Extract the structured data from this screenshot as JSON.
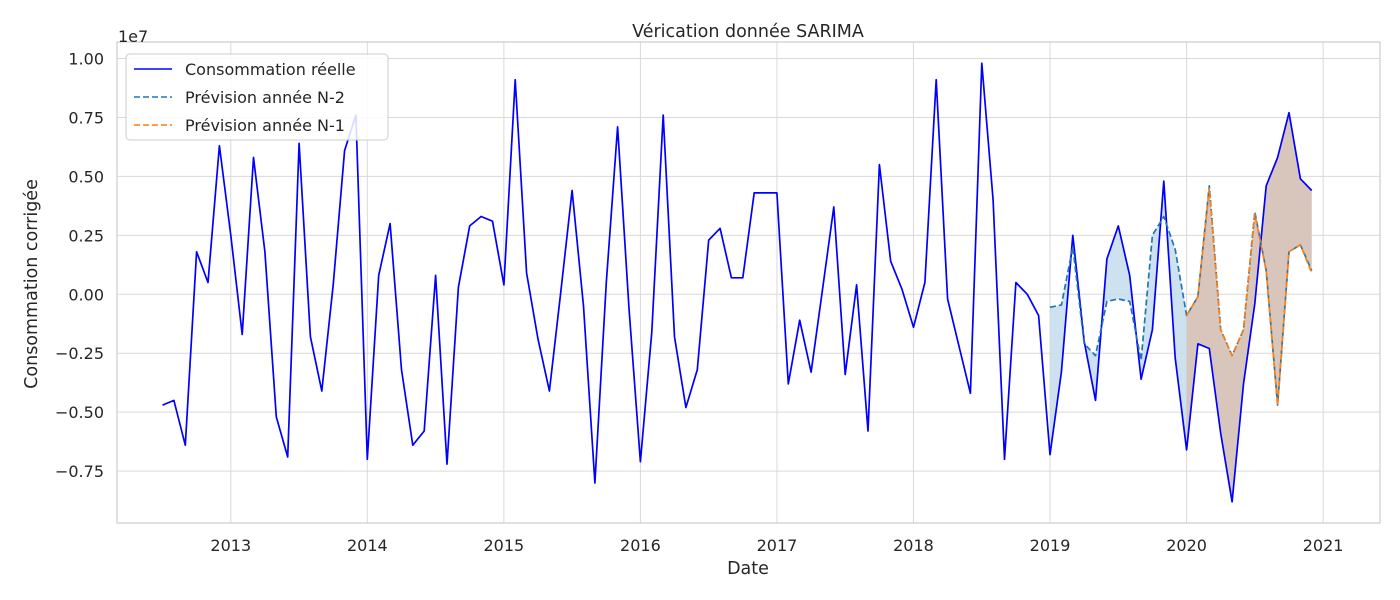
{
  "chart_data": {
    "type": "line",
    "title": "Vérication donnée SARIMA",
    "xlabel": "Date",
    "ylabel": "Consommation corrigée",
    "offset_text": "1e7",
    "x_ticks": [
      "2013",
      "2014",
      "2015",
      "2016",
      "2017",
      "2018",
      "2019",
      "2020",
      "2021"
    ],
    "y_ticks": [
      "−0.75",
      "−0.50",
      "−0.25",
      "0.00",
      "0.25",
      "0.50",
      "0.75",
      "1.00"
    ],
    "y_tick_values": [
      -0.75,
      -0.5,
      -0.25,
      0.0,
      0.25,
      0.5,
      0.75,
      1.0
    ],
    "xlim": [
      "2012-03",
      "2021-06"
    ],
    "ylim": [
      -0.97,
      1.07
    ],
    "grid": true,
    "legend_position": "top-left",
    "colors": {
      "actual": "#0000ff",
      "forecast_n2": "#1f77b4",
      "forecast_n1": "#ff7f0e",
      "fill_n2": "#c6dcec",
      "fill_n1": "#d9c1b3",
      "grid": "#d9d9d9"
    },
    "series": [
      {
        "name": "Consommation réelle",
        "style": "solid",
        "start": "2012-07",
        "values": [
          -0.47,
          -0.45,
          -0.64,
          0.18,
          0.05,
          0.63,
          0.25,
          -0.17,
          0.58,
          0.18,
          -0.52,
          -0.69,
          0.64,
          -0.18,
          -0.41,
          0.04,
          0.61,
          0.76,
          -0.7,
          0.08,
          0.3,
          -0.32,
          -0.64,
          -0.58,
          0.08,
          -0.72,
          0.03,
          0.29,
          0.33,
          0.31,
          0.04,
          0.91,
          0.09,
          -0.19,
          -0.41,
          0.01,
          0.44,
          -0.05,
          -0.8,
          0.05,
          0.71,
          -0.06,
          -0.71,
          -0.16,
          0.76,
          -0.18,
          -0.48,
          -0.32,
          0.23,
          0.28,
          0.07,
          0.07,
          0.43,
          0.43,
          0.43,
          -0.38,
          -0.11,
          -0.33,
          0.02,
          0.37,
          -0.34,
          0.04,
          -0.58,
          0.55,
          0.14,
          0.02,
          -0.14,
          0.05,
          0.91,
          -0.02,
          -0.22,
          -0.42,
          0.98,
          0.4,
          -0.7,
          0.05,
          0.0,
          -0.09,
          -0.68,
          -0.33,
          0.25,
          -0.2,
          -0.45,
          0.15,
          0.29,
          0.08,
          -0.36,
          -0.15,
          0.48,
          -0.27,
          -0.66,
          -0.21,
          -0.23,
          -0.59,
          -0.88,
          -0.38,
          -0.04,
          0.46,
          0.58,
          0.77,
          0.49,
          0.44
        ]
      },
      {
        "name": "Prévision année N-2",
        "style": "dashed",
        "start": "2019-01",
        "values": [
          -0.055,
          -0.045,
          0.2,
          -0.21,
          -0.26,
          -0.03,
          -0.02,
          -0.03,
          -0.28,
          0.25,
          0.33,
          0.19,
          -0.09,
          -0.01,
          0.46,
          -0.15,
          -0.26,
          -0.15,
          0.35,
          0.1,
          -0.47,
          0.18,
          0.21,
          0.1
        ]
      },
      {
        "name": "Prévision année N-1",
        "style": "dashed",
        "start": "2020-01",
        "values": [
          -0.09,
          -0.01,
          0.45,
          -0.15,
          -0.26,
          -0.15,
          0.34,
          0.1,
          -0.47,
          0.18,
          0.21,
          0.09
        ]
      }
    ]
  }
}
